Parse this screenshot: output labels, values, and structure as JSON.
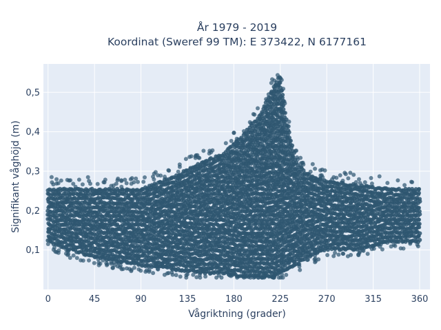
{
  "chart_data": {
    "type": "scatter",
    "title": [
      "År 1979 - 2019",
      "Koordinat (Sweref 99 TM): E 373422, N 6177161"
    ],
    "xlabel": "Vågriktning (grader)",
    "ylabel": "Signifikant våghöjd (m)",
    "xlim": [
      -4.5,
      370
    ],
    "ylim": [
      0.0,
      0.572
    ],
    "xticks": [
      0,
      45,
      90,
      135,
      180,
      225,
      270,
      315,
      360
    ],
    "xtick_labels": [
      "0",
      "45",
      "90",
      "135",
      "180",
      "225",
      "270",
      "315",
      "360"
    ],
    "yticks": [
      0.1,
      0.2,
      0.3,
      0.4,
      0.5
    ],
    "ytick_labels": [
      "0,1",
      "0,2",
      "0,3",
      "0,4",
      "0,5"
    ],
    "grid": true,
    "marker_color": "#2e5670",
    "plot_background": "#e5ecf6",
    "envelope": {
      "x": [
        0,
        20,
        45,
        90,
        120,
        150,
        170,
        190,
        200,
        210,
        215,
        220,
        225,
        230,
        240,
        250,
        270,
        300,
        330,
        360
      ],
      "upper": [
        0.26,
        0.26,
        0.26,
        0.26,
        0.29,
        0.33,
        0.35,
        0.4,
        0.43,
        0.47,
        0.5,
        0.53,
        0.55,
        0.45,
        0.33,
        0.3,
        0.28,
        0.27,
        0.26,
        0.26
      ],
      "lower": [
        0.12,
        0.1,
        0.08,
        0.06,
        0.05,
        0.04,
        0.04,
        0.03,
        0.03,
        0.03,
        0.03,
        0.03,
        0.04,
        0.05,
        0.06,
        0.08,
        0.1,
        0.1,
        0.12,
        0.12
      ]
    }
  }
}
